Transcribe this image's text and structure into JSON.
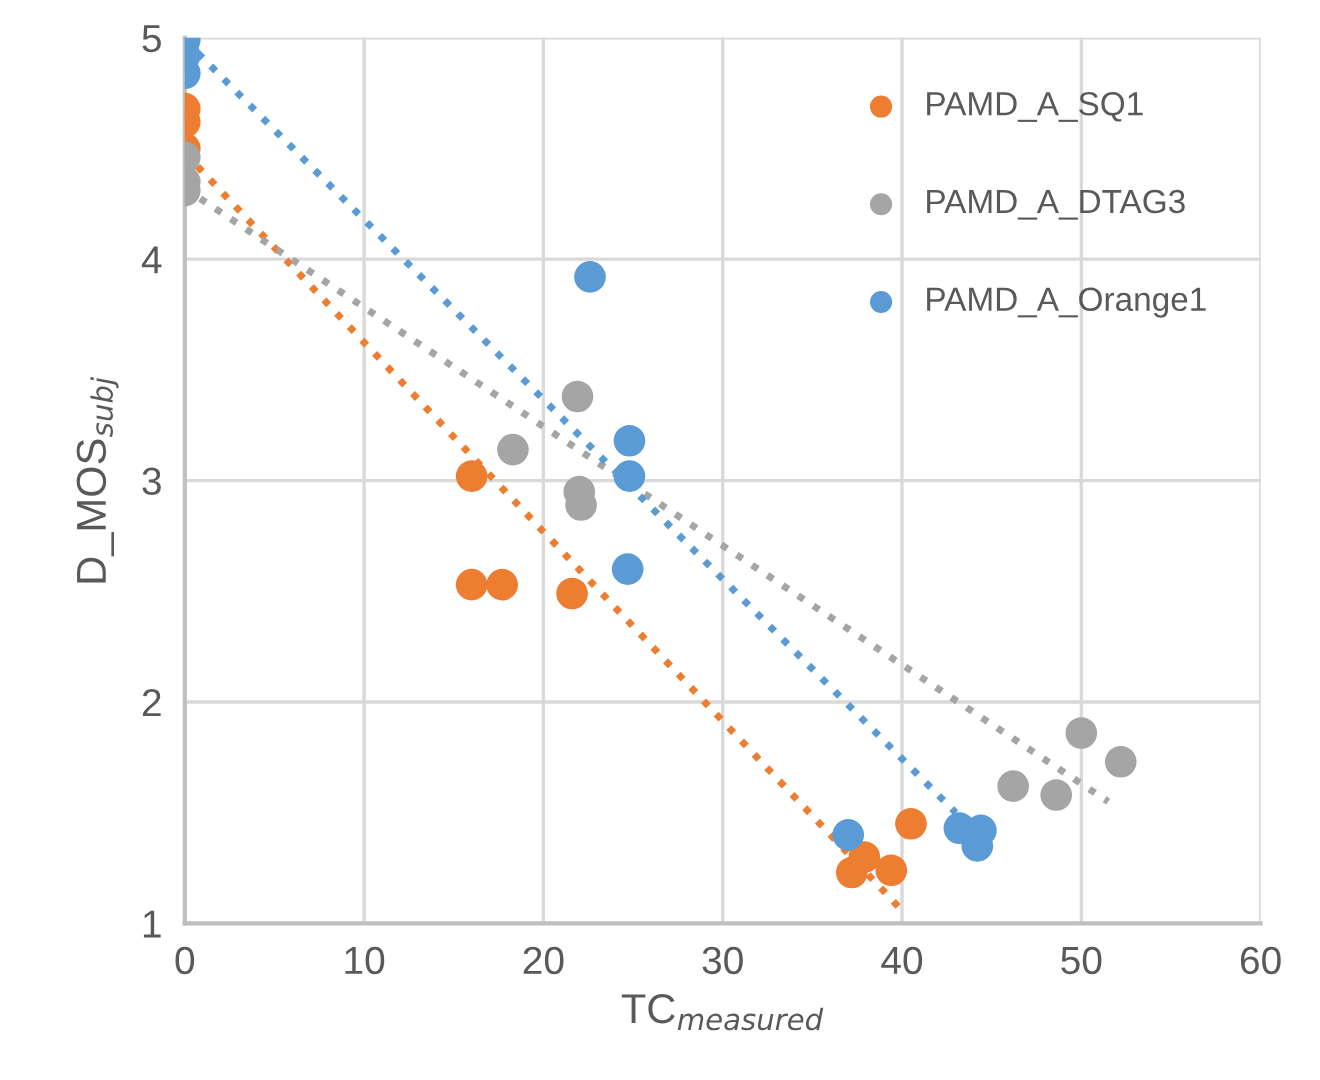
{
  "chart_data": {
    "type": "scatter",
    "xlabel": "TC$_{measured}$",
    "ylabel": "D_MOS$_{subj}$",
    "xlim": [
      0,
      60
    ],
    "xticks": [
      0,
      10,
      20,
      30,
      40,
      50,
      60
    ],
    "ylim": [
      1,
      5
    ],
    "yticks": [
      1,
      2,
      3,
      4,
      5
    ],
    "grid": true,
    "legend": "top right",
    "marker": "circle",
    "series": [
      {
        "name": "PAMD_A_SQ1",
        "color": "#ed7d31",
        "x": [
          0,
          0,
          0,
          16.0,
          16.0,
          17.7,
          21.6,
          37.2,
          37.9,
          39.4,
          40.5
        ],
        "values": [
          4.68,
          4.62,
          4.5,
          3.02,
          2.53,
          2.53,
          2.49,
          1.23,
          1.3,
          1.24,
          1.45
        ]
      },
      {
        "name": "PAMD_A_DTAG3",
        "color": "#a5a5a5",
        "x": [
          0,
          0,
          0,
          18.3,
          21.9,
          22.0,
          22.1,
          46.2,
          48.6,
          50.0,
          52.2
        ],
        "values": [
          4.46,
          4.35,
          4.31,
          3.14,
          3.38,
          2.95,
          2.89,
          1.62,
          1.58,
          1.86,
          1.73
        ]
      },
      {
        "name": "PAMD_A_Orange1",
        "color": "#5b9bd5",
        "x": [
          0,
          0,
          0,
          22.6,
          24.8,
          24.8,
          24.7,
          37.0,
          43.2,
          44.4,
          44.2
        ],
        "values": [
          4.99,
          4.92,
          4.84,
          3.92,
          3.18,
          3.02,
          2.6,
          1.4,
          1.43,
          1.42,
          1.35
        ]
      },
      {
        "type": "line",
        "line_style": "dotted",
        "marker": "none",
        "color": "#ed7d31",
        "x": [
          0,
          40.1
        ],
        "values": [
          4.48,
          1.05
        ]
      },
      {
        "type": "line",
        "line_style": "dotted",
        "marker": "none",
        "color": "#a5a5a5",
        "x": [
          0,
          51.5
        ],
        "values": [
          4.32,
          1.55
        ]
      },
      {
        "type": "line",
        "line_style": "dotted",
        "marker": "none",
        "color": "#5b9bd5",
        "x": [
          0,
          43.0
        ],
        "values": [
          4.99,
          1.5
        ]
      }
    ]
  }
}
